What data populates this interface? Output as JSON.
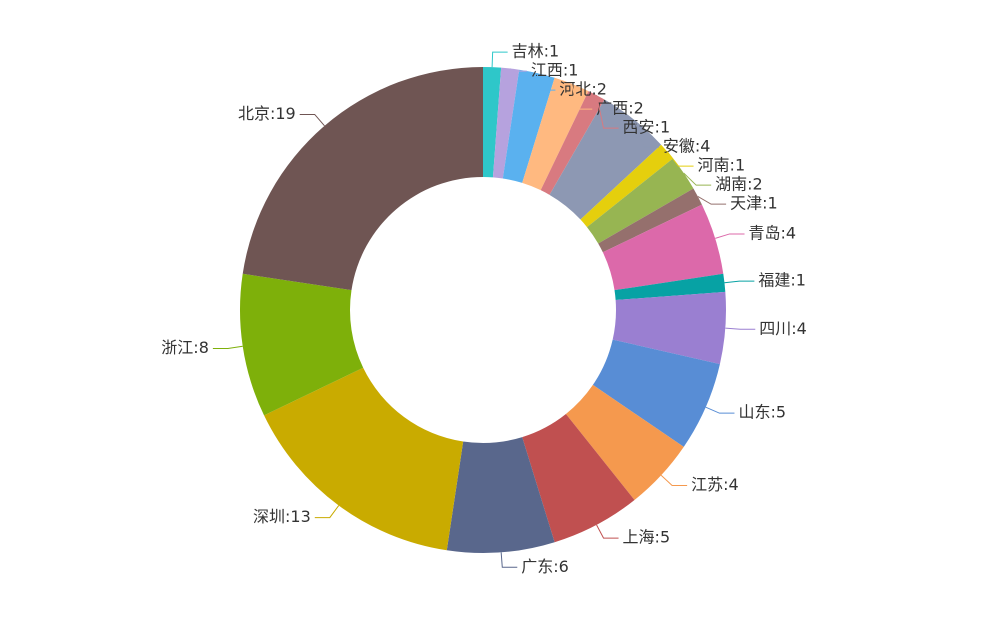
{
  "chart_data": {
    "type": "pie",
    "value_labels": [
      "吉林:1",
      "江西:1",
      "河北:2",
      "广西:2",
      "西安:1",
      "安徽:4",
      "河南:1",
      "湖南:2",
      "天津:1",
      "青岛:4",
      "福建:1",
      "四川:4",
      "山东:5",
      "江苏:4",
      "上海:5",
      "广东:6",
      "深圳:13",
      "浙江:8",
      "北京:19"
    ],
    "values": [
      1,
      1,
      2,
      2,
      1,
      4,
      1,
      2,
      1,
      4,
      1,
      4,
      5,
      4,
      5,
      6,
      13,
      8,
      19
    ],
    "colors": [
      "#2ec7c9",
      "#b6a2de",
      "#5ab1ef",
      "#ffb980",
      "#d87a80",
      "#8d98b3",
      "#e5cf0d",
      "#97b552",
      "#95706d",
      "#dc69aa",
      "#07a2a4",
      "#9a7fd1",
      "#588dd5",
      "#f5994e",
      "#c05050",
      "#59678c",
      "#c9ab00",
      "#7eb00a",
      "#6f5553"
    ]
  }
}
